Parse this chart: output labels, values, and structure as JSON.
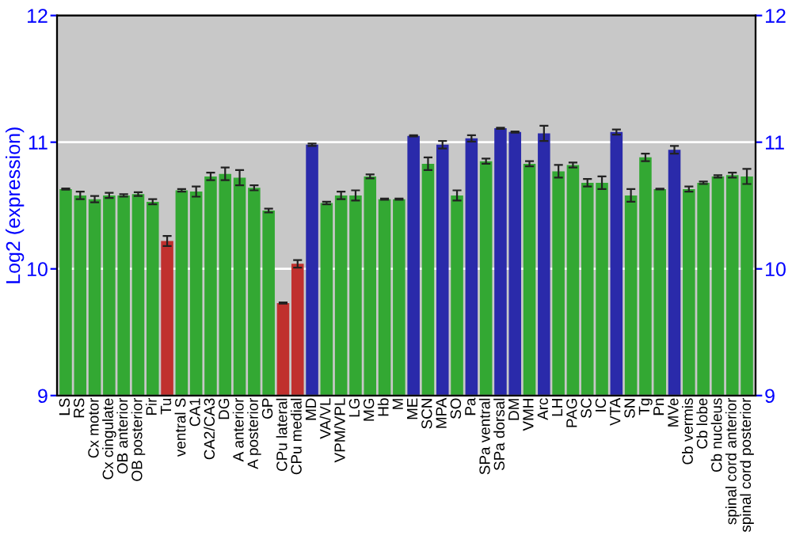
{
  "chart_data": {
    "type": "bar",
    "ylabel": "Log2 (expression)",
    "categories": [
      "LS",
      "RS",
      "Cx motor",
      "Cx cingulate",
      "OB anterior",
      "OB posterior",
      "Pir",
      "Tu",
      "ventral S",
      "CA1",
      "CA2/CA3",
      "DG",
      "A anterior",
      "A posterior",
      "GP",
      "CPu lateral",
      "CPu medial",
      "MD",
      "VA/VL",
      "VPM/VPL",
      "LG",
      "MG",
      "Hb",
      "M",
      "ME",
      "SCN",
      "MPA",
      "SO",
      "Pa",
      "SPa ventral",
      "SPa dorsal",
      "DM",
      "VMH",
      "Arc",
      "LH",
      "PAG",
      "SC",
      "IC",
      "VTA",
      "SN",
      "Tg",
      "Pn",
      "MVe",
      "Cb vermis",
      "Cb lobe",
      "Cb nucleus",
      "spinal cord anterior",
      "spinal cord posterior"
    ],
    "values": [
      10.63,
      10.58,
      10.55,
      10.58,
      10.58,
      10.59,
      10.53,
      10.22,
      10.62,
      10.61,
      10.73,
      10.75,
      10.72,
      10.64,
      10.46,
      9.73,
      10.04,
      10.98,
      10.52,
      10.58,
      10.58,
      10.73,
      10.55,
      10.55,
      11.05,
      10.83,
      10.98,
      10.58,
      11.03,
      10.85,
      11.11,
      11.08,
      10.83,
      11.07,
      10.77,
      10.82,
      10.68,
      10.68,
      11.08,
      10.58,
      10.88,
      10.63,
      10.94,
      10.63,
      10.68,
      10.73,
      10.74,
      10.73
    ],
    "errors": [
      0.005,
      0.03,
      0.025,
      0.02,
      0.01,
      0.015,
      0.02,
      0.04,
      0.01,
      0.04,
      0.03,
      0.05,
      0.06,
      0.02,
      0.015,
      0.005,
      0.03,
      0.01,
      0.01,
      0.03,
      0.04,
      0.015,
      0.005,
      0.005,
      0.005,
      0.05,
      0.03,
      0.04,
      0.025,
      0.02,
      0.005,
      0.005,
      0.02,
      0.06,
      0.05,
      0.02,
      0.03,
      0.05,
      0.02,
      0.05,
      0.03,
      0.003,
      0.03,
      0.02,
      0.01,
      0.01,
      0.02,
      0.06
    ],
    "colors": [
      "#33a833",
      "#33a833",
      "#33a833",
      "#33a833",
      "#33a833",
      "#33a833",
      "#33a833",
      "#c0302e",
      "#33a833",
      "#33a833",
      "#33a833",
      "#33a833",
      "#33a833",
      "#33a833",
      "#33a833",
      "#c0302e",
      "#c0302e",
      "#2a2aaa",
      "#33a833",
      "#33a833",
      "#33a833",
      "#33a833",
      "#33a833",
      "#33a833",
      "#2a2aaa",
      "#33a833",
      "#2a2aaa",
      "#33a833",
      "#2a2aaa",
      "#33a833",
      "#2a2aaa",
      "#2a2aaa",
      "#33a833",
      "#2a2aaa",
      "#33a833",
      "#33a833",
      "#33a833",
      "#33a833",
      "#2a2aaa",
      "#33a833",
      "#33a833",
      "#33a833",
      "#2a2aaa",
      "#33a833",
      "#33a833",
      "#33a833",
      "#33a833",
      "#33a833"
    ],
    "ylim": [
      9,
      12
    ],
    "yticks": [
      9,
      10,
      11,
      12
    ],
    "y2lim": [
      9,
      12
    ],
    "y2ticks": [
      9,
      10,
      11,
      12
    ],
    "grid": "y"
  }
}
